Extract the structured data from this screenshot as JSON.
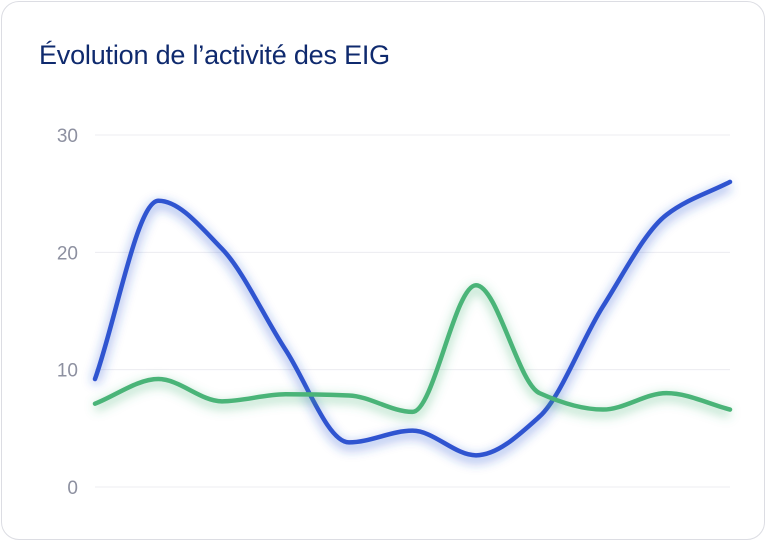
{
  "chart_data": {
    "type": "line",
    "title": "Évolution de l’activité des EIG",
    "xlabel": "",
    "ylabel": "",
    "ylim": [
      0,
      30
    ],
    "yticks": [
      0,
      10,
      20,
      30
    ],
    "grid": true,
    "x": [
      0,
      1,
      2,
      3,
      4,
      5,
      6,
      7,
      8,
      9,
      10
    ],
    "series": [
      {
        "color": "#2f54d0",
        "values": [
          9.2,
          24.4,
          20.3,
          11.7,
          3.8,
          4.8,
          2.7,
          6.0,
          15.4,
          23.2,
          26.0
        ]
      },
      {
        "color": "#4ab478",
        "values": [
          7.1,
          9.2,
          7.3,
          7.9,
          7.8,
          6.4,
          17.2,
          8.0,
          6.6,
          8.0,
          6.6
        ]
      }
    ]
  }
}
